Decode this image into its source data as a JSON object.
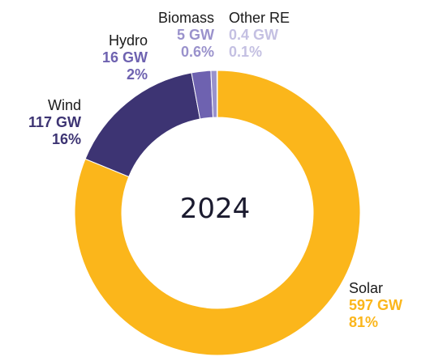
{
  "chart_data": {
    "type": "pie",
    "donut": true,
    "center_label": "2024",
    "series": [
      {
        "name": "Solar",
        "value": 597,
        "value_label": "597 GW",
        "share_label": "81%",
        "color": "#FBB61B"
      },
      {
        "name": "Wind",
        "value": 117,
        "value_label": "117 GW",
        "share_label": "16%",
        "color": "#3D3473"
      },
      {
        "name": "Hydro",
        "value": 16,
        "value_label": "16 GW",
        "share_label": "2%",
        "color": "#6E62B0"
      },
      {
        "name": "Biomass",
        "value": 5,
        "value_label": "5 GW",
        "share_label": "0.6%",
        "color": "#9A92CC"
      },
      {
        "name": "Other RE",
        "value": 0.4,
        "value_label": "0.4 GW",
        "share_label": "0.1%",
        "color": "#C4C0E2"
      }
    ]
  }
}
